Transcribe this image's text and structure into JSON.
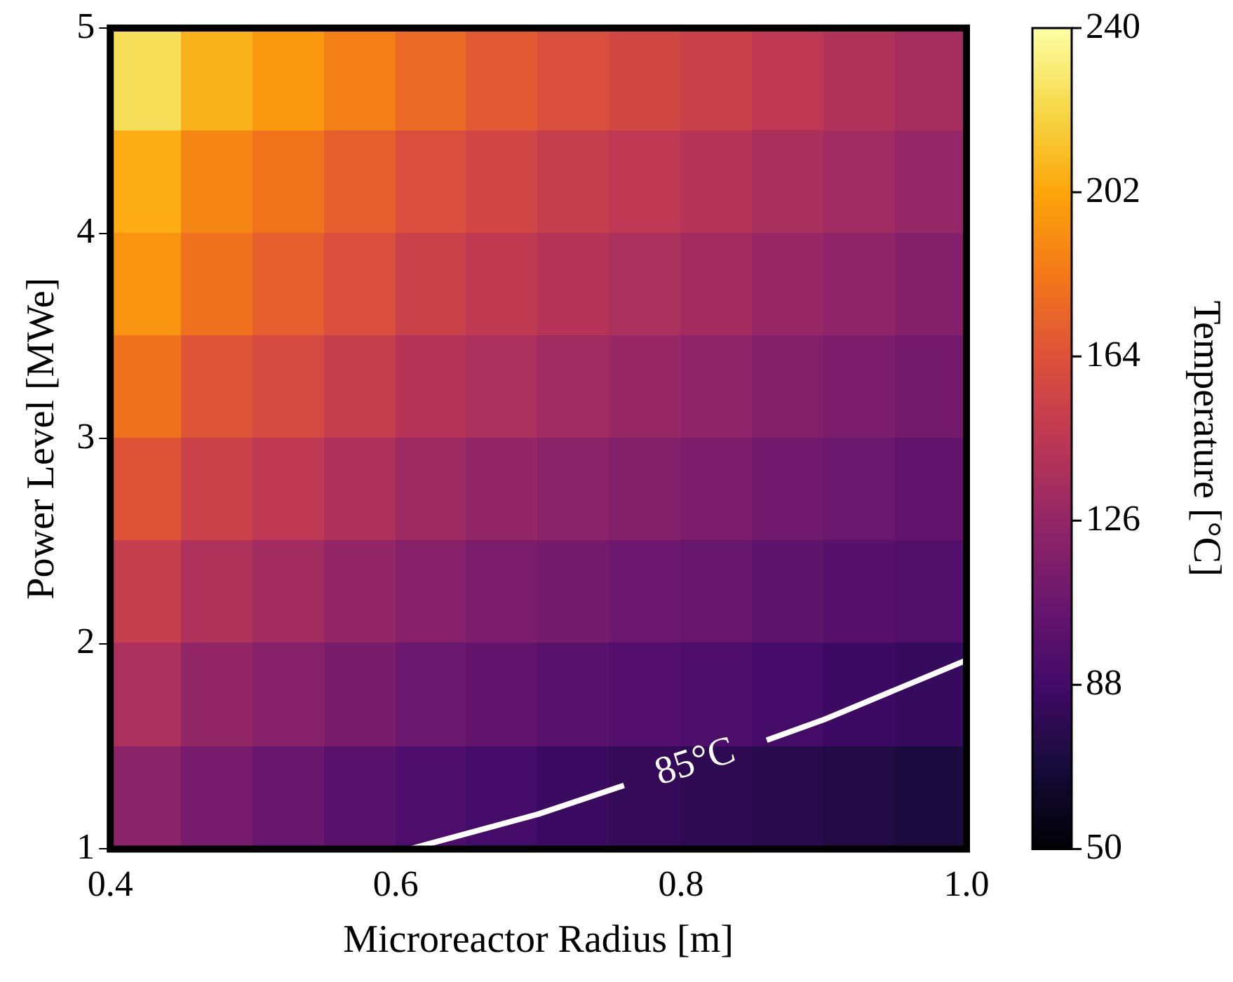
{
  "chart_data": {
    "type": "heatmap",
    "xlabel": "Microreactor Radius [m]",
    "ylabel": "Power Level [MWe]",
    "clabel": "Temperature [°C]",
    "x": [
      0.425,
      0.475,
      0.525,
      0.575,
      0.625,
      0.675,
      0.725,
      0.775,
      0.825,
      0.875,
      0.925,
      0.975
    ],
    "xlim": [
      0.4,
      1.0
    ],
    "xticks": [
      {
        "value": 0.4,
        "label": "0.4"
      },
      {
        "value": 0.6,
        "label": "0.6"
      },
      {
        "value": 0.8,
        "label": "0.8"
      },
      {
        "value": 1.0,
        "label": "1.0"
      }
    ],
    "ylim": [
      1,
      5
    ],
    "yticks": [
      1,
      2,
      3,
      4,
      5
    ],
    "clim": [
      50,
      240
    ],
    "cticks": [
      50,
      88,
      126,
      164,
      202,
      240
    ],
    "cells": [
      [
        225,
        207,
        197,
        186,
        176,
        168,
        162,
        157,
        152,
        146,
        140,
        135
      ],
      [
        205,
        189,
        181,
        171,
        162,
        156,
        150,
        146,
        142,
        136,
        132,
        127
      ],
      [
        195,
        180,
        171,
        162,
        153,
        147,
        142,
        137,
        133,
        128,
        124,
        119
      ],
      [
        180,
        166,
        159,
        150,
        142,
        137,
        132,
        128,
        124,
        119,
        115,
        111
      ],
      [
        165,
        153,
        146,
        138,
        131,
        126,
        122,
        118,
        115,
        110,
        107,
        103
      ],
      [
        150,
        139,
        133,
        126,
        120,
        115,
        112,
        108,
        105,
        102,
        98,
        95
      ],
      [
        137,
        126,
        120,
        114,
        107,
        103,
        99,
        96,
        93,
        89,
        86,
        83
      ],
      [
        122,
        113,
        106,
        99,
        93,
        89,
        85,
        82,
        79,
        77,
        74,
        71
      ]
    ],
    "series": [
      {
        "type": "line",
        "color": "#ffffff",
        "x": [
          0.61,
          0.7,
          0.76,
          0.81,
          0.86,
          0.9,
          1.0
        ],
        "values": [
          1.0,
          1.17,
          1.31,
          null,
          1.53,
          1.63,
          1.92
        ]
      }
    ],
    "annotations": [
      "85°C"
    ],
    "grid": false,
    "legend": false,
    "marker": "none"
  }
}
